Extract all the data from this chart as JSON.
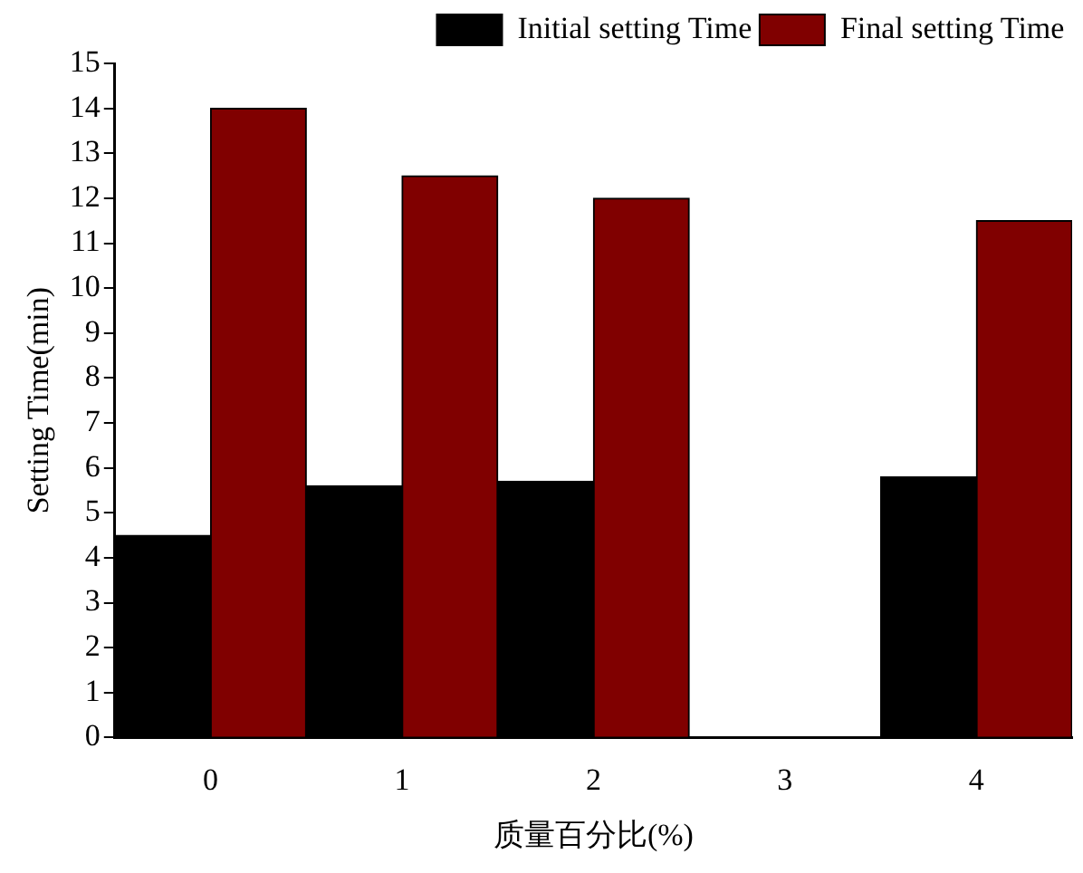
{
  "chart_data": {
    "type": "bar",
    "xlabel": "质量百分比(%)",
    "ylabel": "Setting Time(min)",
    "categories": [
      "0",
      "1",
      "2",
      "3",
      "4"
    ],
    "series": [
      {
        "name": "Initial setting Time",
        "color": "#000000",
        "values": [
          4.5,
          5.6,
          5.7,
          null,
          5.8
        ]
      },
      {
        "name": "Final setting Time",
        "color": "#800000",
        "values": [
          14,
          12.5,
          12,
          null,
          11.5
        ]
      }
    ],
    "ylim": [
      0,
      15
    ],
    "yticks": [
      0,
      1,
      2,
      3,
      4,
      5,
      6,
      7,
      8,
      9,
      10,
      11,
      12,
      13,
      14,
      15
    ],
    "grid": false,
    "legend": "top right"
  }
}
